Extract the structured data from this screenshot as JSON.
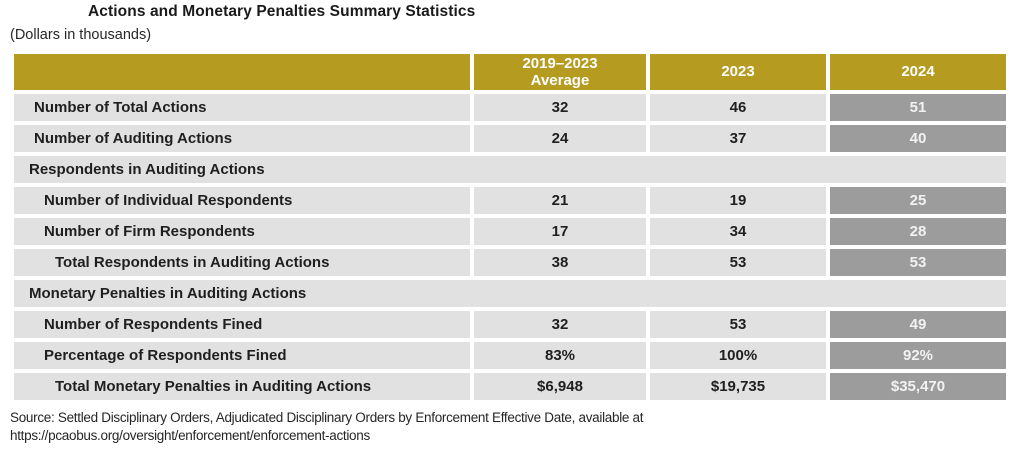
{
  "colors": {
    "header_gold": "#B59B20",
    "row_light_gray": "#E1E1E1",
    "highlight_column_gray": "#9C9C9C",
    "text_dark": "#1F1F1F",
    "header_text_white": "#FFFFFF"
  },
  "chart_data": {
    "type": "table",
    "title": "Actions and Monetary Penalties Summary Statistics",
    "subtitle": "(Dollars in thousands)",
    "columns": [
      "",
      "2019–2023\nAverage",
      "2023",
      "2024"
    ],
    "layout": {
      "header_style": "gold",
      "highlight_column": "2024",
      "highlight_style": "dark-gray-white-text",
      "grid": "white-gaps-between-cells"
    },
    "rows": [
      {
        "type": "data",
        "indent": 1,
        "label": "Number of Total Actions",
        "values": [
          "32",
          "46",
          "51"
        ]
      },
      {
        "type": "data",
        "indent": 1,
        "label": "Number of Auditing Actions",
        "values": [
          "24",
          "37",
          "40"
        ]
      },
      {
        "type": "section",
        "indent": 0,
        "label": "Respondents in Auditing Actions",
        "values": []
      },
      {
        "type": "data",
        "indent": 2,
        "label": "Number of Individual Respondents",
        "values": [
          "21",
          "19",
          "25"
        ]
      },
      {
        "type": "data",
        "indent": 2,
        "label": "Number of Firm Respondents",
        "values": [
          "17",
          "34",
          "28"
        ]
      },
      {
        "type": "data",
        "indent": 3,
        "label": "Total Respondents in Auditing Actions",
        "values": [
          "38",
          "53",
          "53"
        ]
      },
      {
        "type": "section",
        "indent": 0,
        "label": "Monetary Penalties in Auditing Actions",
        "values": []
      },
      {
        "type": "data",
        "indent": 2,
        "label": "Number of Respondents Fined",
        "values": [
          "32",
          "53",
          "49"
        ]
      },
      {
        "type": "data",
        "indent": 2,
        "label": "Percentage of Respondents Fined",
        "values": [
          "83%",
          "100%",
          "92%"
        ]
      },
      {
        "type": "data",
        "indent": 3,
        "label": "Total Monetary Penalties in Auditing Actions",
        "values": [
          "$6,948",
          "$19,735",
          "$35,470"
        ]
      }
    ],
    "source": "Source: Settled Disciplinary Orders, Adjudicated Disciplinary Orders by Enforcement Effective Date, available at\nhttps://pcaobus.org/oversight/enforcement/enforcement-actions"
  }
}
